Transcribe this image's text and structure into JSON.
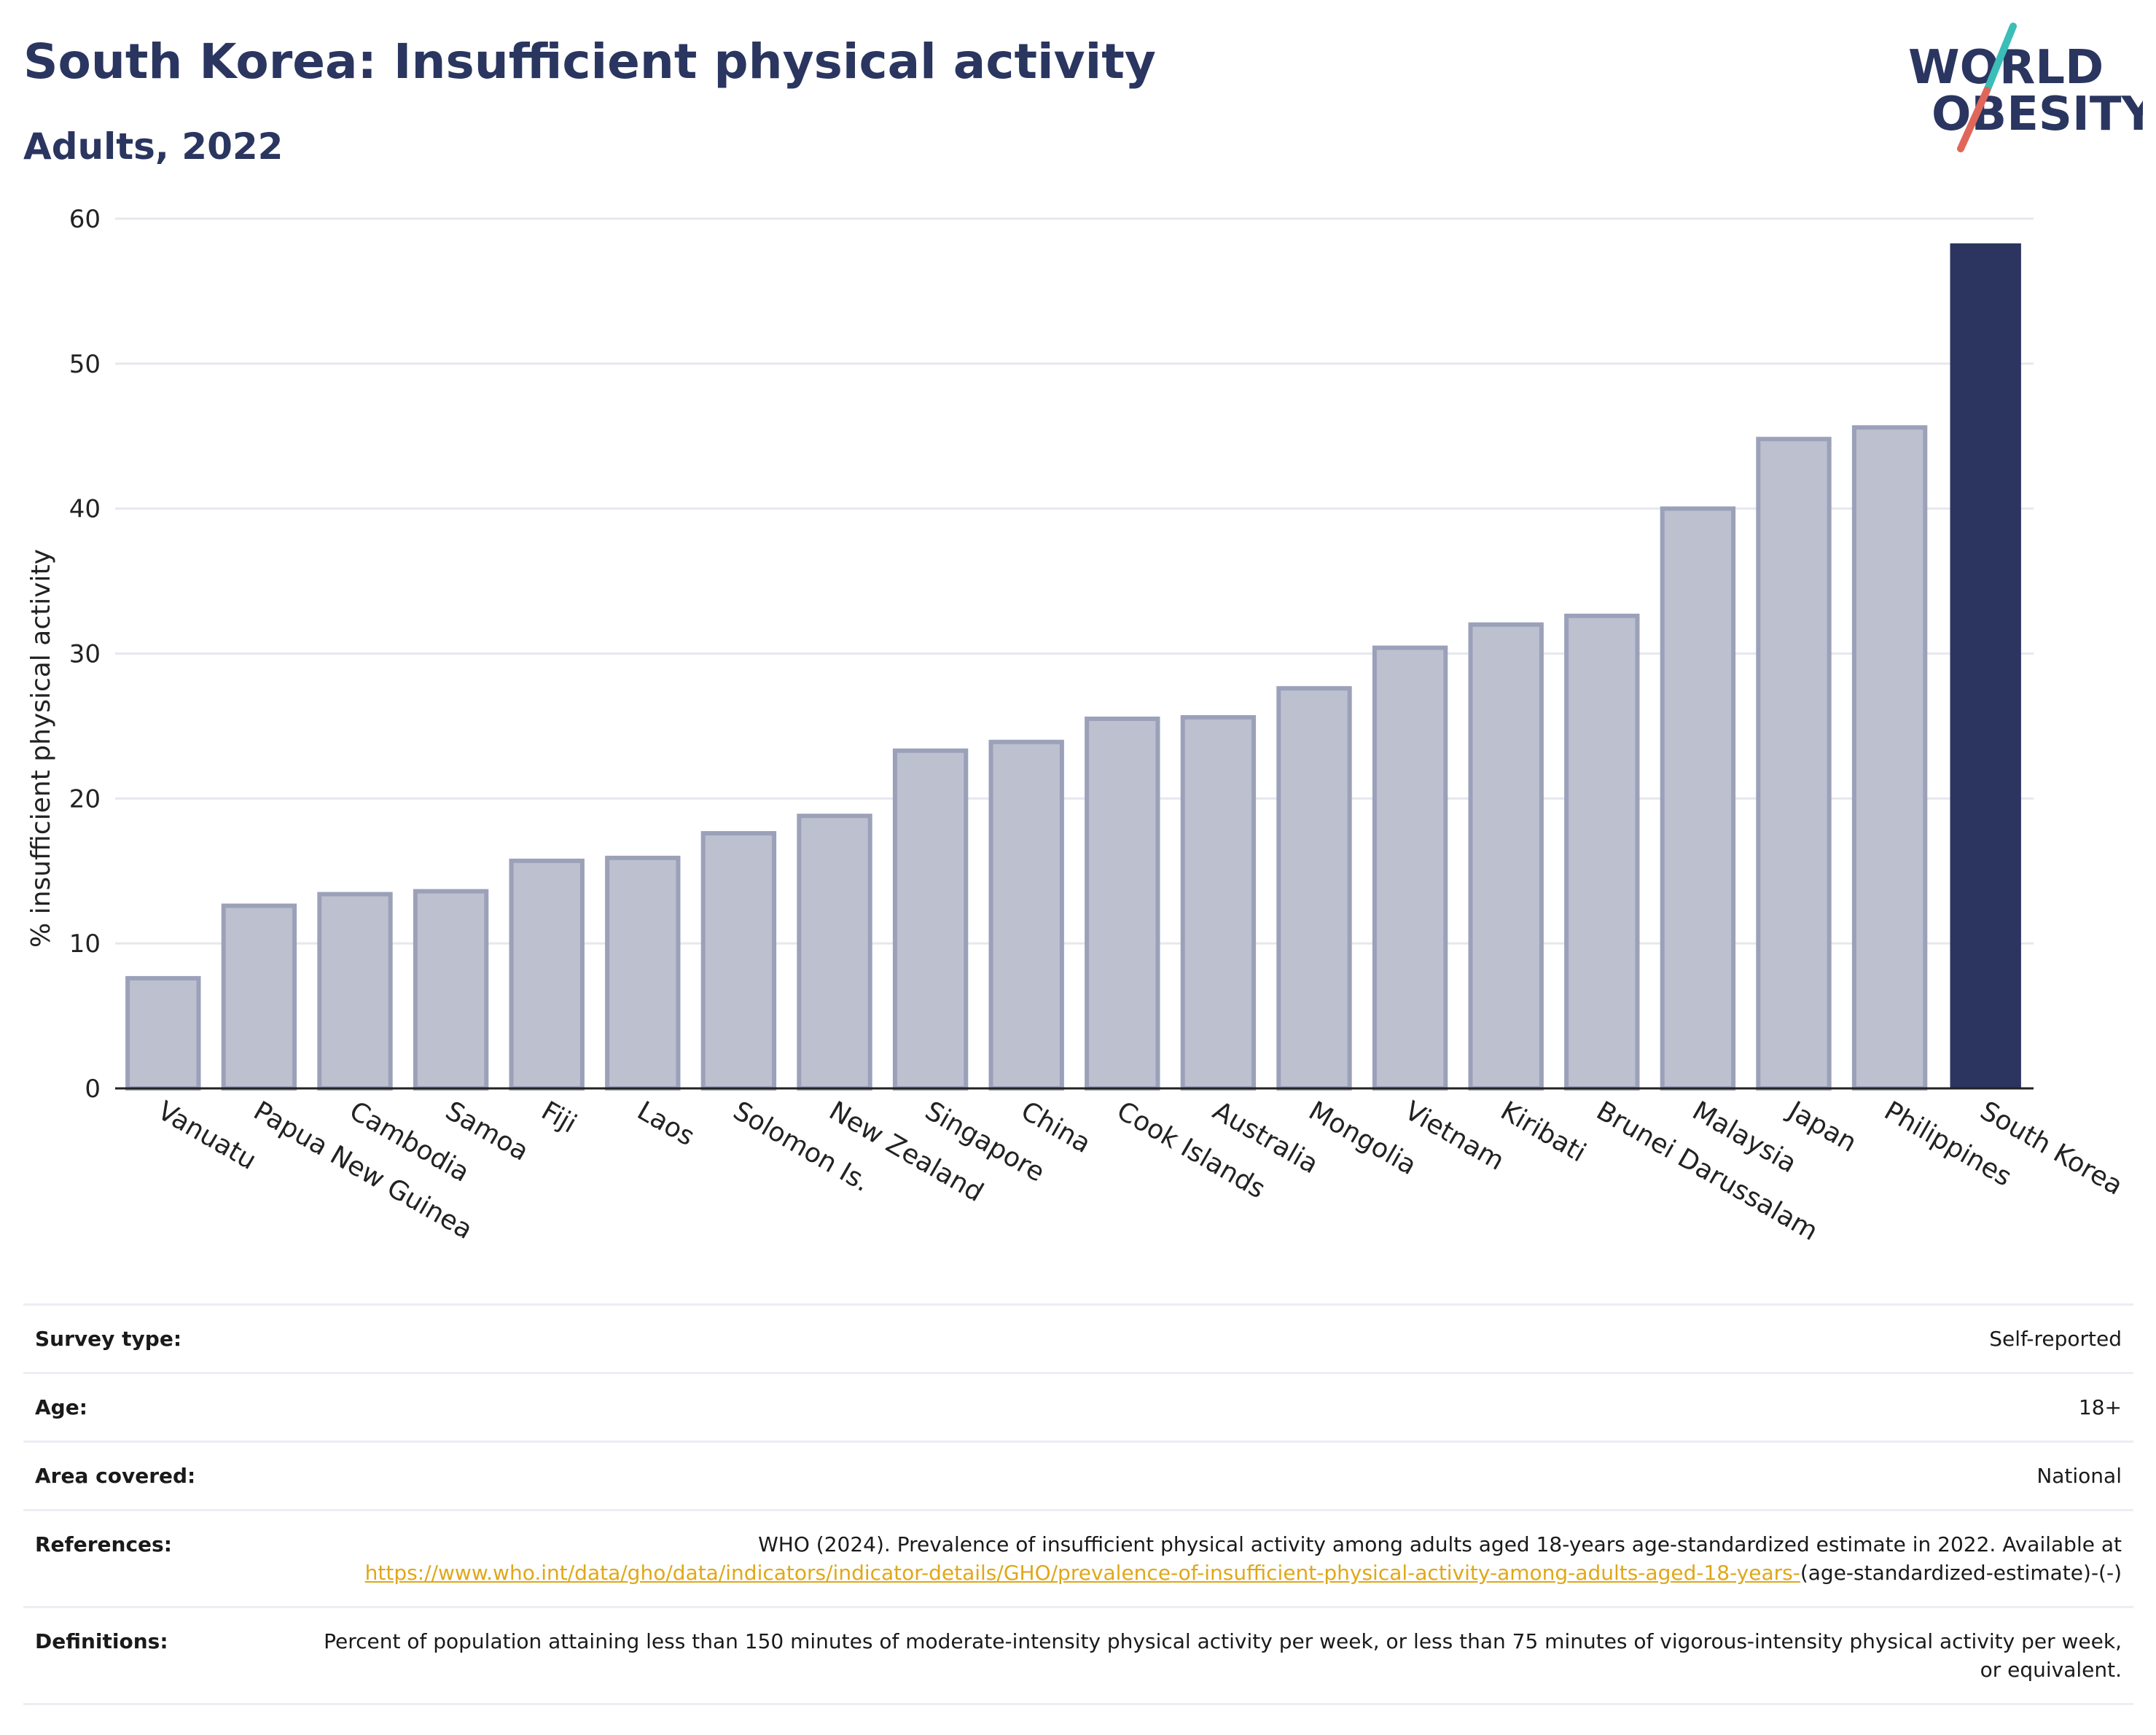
{
  "header": {
    "title": "South Korea: Insufficient physical activity",
    "subtitle": "Adults, 2022"
  },
  "logo": {
    "line1": "WORLD",
    "line2": "OBESITY",
    "accent_colors": [
      "#3bbdb8",
      "#e0665a"
    ]
  },
  "colors": {
    "title": "#2a3560",
    "bar_other": "#bcc0cf",
    "bar_other_edge": "#9ba1b9",
    "bar_highlight": "#2b3560",
    "link": "#e0a718"
  },
  "chart_data": {
    "type": "bar",
    "ylabel": "% insufficient physical activity",
    "ylim": [
      0,
      60
    ],
    "yticks": [
      0,
      10,
      20,
      30,
      40,
      50,
      60
    ],
    "grid": true,
    "highlight": "South Korea",
    "categories": [
      "Vanuatu",
      "Papua New Guinea",
      "Cambodia",
      "Samoa",
      "Fiji",
      "Laos",
      "Solomon Is.",
      "New Zealand",
      "Singapore",
      "China",
      "Cook Islands",
      "Australia",
      "Mongolia",
      "Vietnam",
      "Kiribati",
      "Brunei Darussalam",
      "Malaysia",
      "Japan",
      "Philippines",
      "South Korea"
    ],
    "values": [
      7.6,
      12.6,
      13.4,
      13.6,
      15.7,
      15.9,
      17.6,
      18.8,
      23.3,
      23.9,
      25.5,
      25.6,
      27.6,
      30.4,
      32.0,
      32.6,
      40.0,
      44.8,
      45.6,
      58.3
    ]
  },
  "info": [
    {
      "label": "Survey type:",
      "value": "Self-reported"
    },
    {
      "label": "Age:",
      "value": "18+"
    },
    {
      "label": "Area covered:",
      "value": "National"
    },
    {
      "label": "References:",
      "text_before": "WHO (2024). Prevalence of insufficient physical activity among adults aged 18-years age-standardized estimate in 2022. Available at",
      "link": "https://www.who.int/data/gho/data/indicators/indicator-details/GHO/prevalence-of-insufficient-physical-activity-among-adults-aged-18-years-",
      "text_after": "(age-standardized-estimate)-(-)"
    },
    {
      "label": "Definitions:",
      "value": "Percent of population attaining less than 150 minutes of moderate-intensity physical activity per week, or less than 75 minutes of vigorous-intensity physical activity per week, or equivalent."
    }
  ]
}
